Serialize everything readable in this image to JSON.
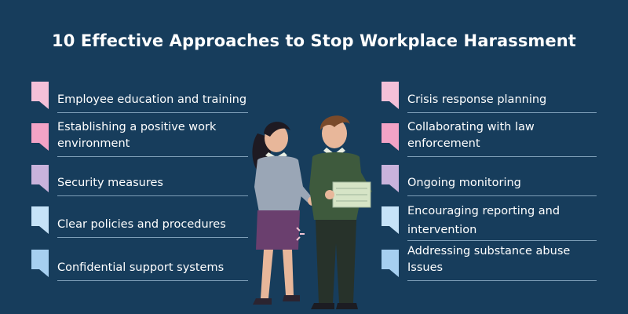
{
  "title": "10 Effective Approaches to Stop Workplace Harassment",
  "colors": {
    "background": "#173d5c",
    "pink_light": "#f4c0d8",
    "pink": "#f3a3c6",
    "lavender": "#c9b3dc",
    "sky_light": "#c6e3f8",
    "sky": "#a6cff0"
  },
  "left_items": [
    {
      "label": "Employee education and training",
      "color": "pink_light"
    },
    {
      "label": "Establishing a positive work environment",
      "color": "pink"
    },
    {
      "label": "Security measures",
      "color": "lavender"
    },
    {
      "label": "Clear policies and procedures",
      "color": "sky_light"
    },
    {
      "label": "Confidential support systems",
      "color": "sky"
    }
  ],
  "right_items": [
    {
      "label": "Crisis response planning",
      "color": "pink_light"
    },
    {
      "label": "Collaborating with law enforcement",
      "color": "pink"
    },
    {
      "label": "Ongoing monitoring",
      "color": "lavender"
    },
    {
      "label": "Encouraging reporting and intervention",
      "color": "sky_light"
    },
    {
      "label": "Addressing substance abuse Issues",
      "color": "sky"
    }
  ]
}
